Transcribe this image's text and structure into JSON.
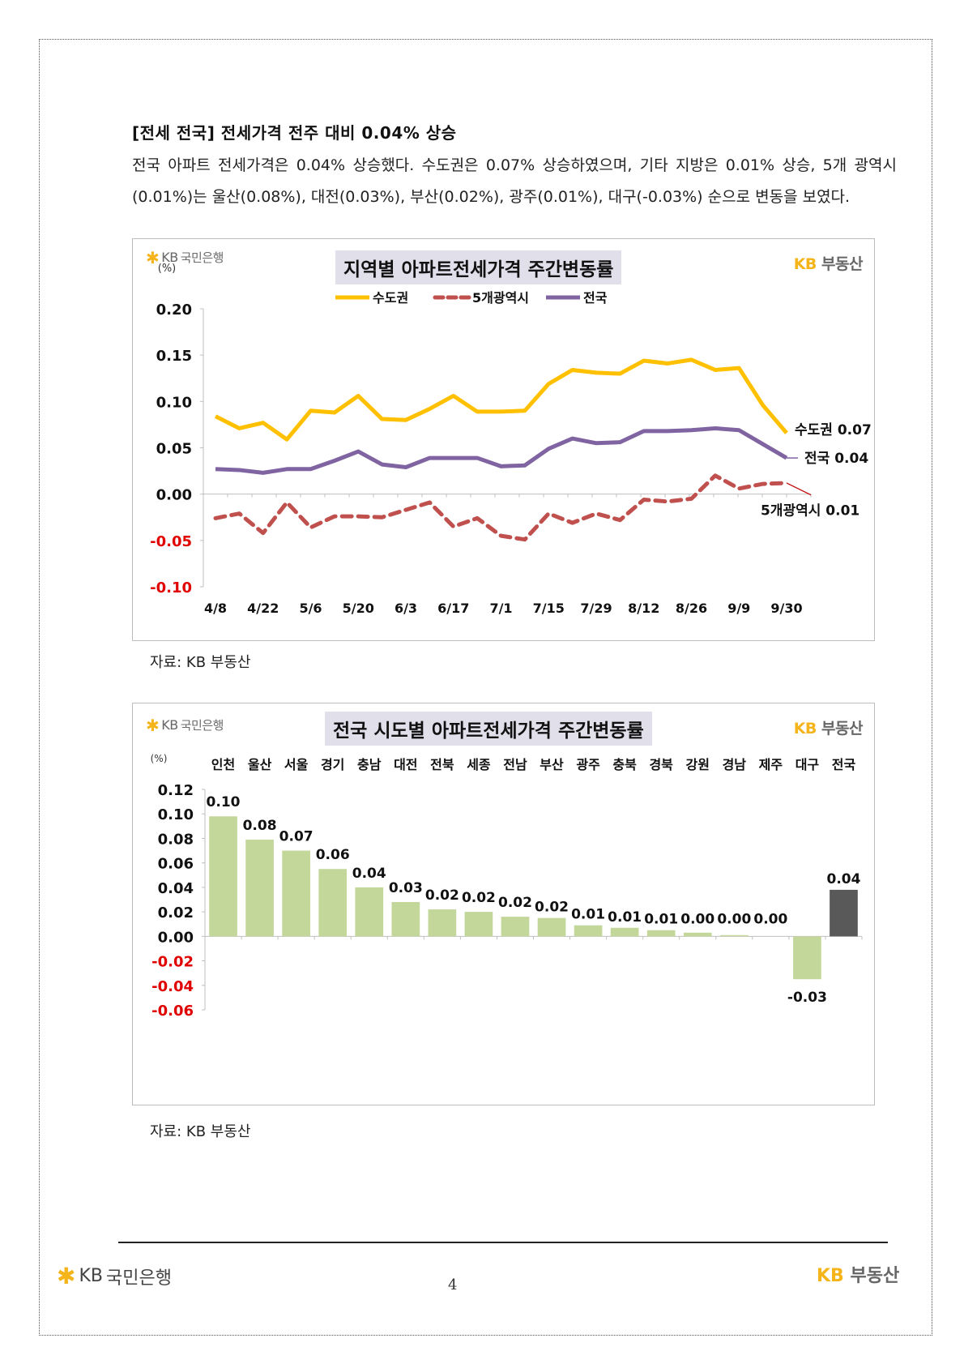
{
  "heading": "[전세 전국] 전세가격 전주 대비 0.04% 상승",
  "paragraph": "전국 아파트 전세가격은 0.04% 상승했다. 수도권은 0.07% 상승하였으며, 기타 지방은 0.01% 상승, 5개 광역시(0.01%)는 울산(0.08%), 대전(0.03%), 부산(0.02%), 광주(0.01%), 대구(-0.03%) 순으로 변동을 보였다.",
  "logos": {
    "bank_star": "✱",
    "bank_kb": "KB",
    "bank_name": "국민은행",
    "land_kb": "KB",
    "land_name": "부동산"
  },
  "colors": {
    "sudogwon": "#FFC000",
    "metro5": "#C0504D",
    "national": "#8064A2",
    "bar": "#C4D79B",
    "bar_highlight": "#595959",
    "negative_tick": "#E00000",
    "title_bg": "#E1DFEA",
    "kb_yellow": "#F5B41A"
  },
  "caption1": "자료: KB 부동산",
  "caption2": "자료: KB 부동산",
  "footer": {
    "page_number": "4"
  },
  "chart_data": [
    {
      "type": "line",
      "title": "지역별 아파트전세가격 주간변동률",
      "ylabel": "(%)",
      "xlabel": "",
      "ylim": [
        -0.1,
        0.2
      ],
      "yticks": [
        0.2,
        0.15,
        0.1,
        0.05,
        0.0,
        -0.05,
        -0.1
      ],
      "ytick_labels": [
        "0.20",
        "0.15",
        "0.10",
        "0.05",
        "0.00",
        "-0.05",
        "-0.10"
      ],
      "x_tick_labels": [
        "4/8",
        "4/22",
        "5/6",
        "5/20",
        "6/3",
        "6/17",
        "7/1",
        "7/15",
        "7/29",
        "8/12",
        "8/26",
        "9/9",
        "9/30"
      ],
      "x_tick_positions": [
        0,
        2,
        4,
        6,
        8,
        10,
        12,
        14,
        16,
        18,
        20,
        22,
        24
      ],
      "grid": false,
      "legend": "top-center",
      "series": [
        {
          "name": "수도권",
          "style": "solid",
          "values": [
            0.084,
            0.071,
            0.077,
            0.059,
            0.09,
            0.088,
            0.106,
            0.081,
            0.08,
            0.092,
            0.106,
            0.089,
            0.089,
            0.09,
            0.119,
            0.134,
            0.131,
            0.13,
            0.144,
            0.141,
            0.145,
            0.134,
            0.136,
            0.096,
            0.066
          ],
          "end_label": "수도권 0.07"
        },
        {
          "name": "5개광역시",
          "style": "dashed",
          "values": [
            -0.026,
            -0.021,
            -0.042,
            -0.009,
            -0.036,
            -0.024,
            -0.024,
            -0.025,
            -0.017,
            -0.009,
            -0.035,
            -0.026,
            -0.045,
            -0.049,
            -0.021,
            -0.031,
            -0.021,
            -0.028,
            -0.006,
            -0.008,
            -0.005,
            0.02,
            0.006,
            0.011,
            0.012
          ],
          "end_label": "5개광역시 0.01"
        },
        {
          "name": "전국",
          "style": "solid",
          "values": [
            0.027,
            0.026,
            0.023,
            0.027,
            0.027,
            0.036,
            0.046,
            0.032,
            0.029,
            0.039,
            0.039,
            0.039,
            0.03,
            0.031,
            0.049,
            0.06,
            0.055,
            0.056,
            0.068,
            0.068,
            0.069,
            0.071,
            0.069,
            0.054,
            0.039
          ],
          "end_label": "전국 0.04"
        }
      ]
    },
    {
      "type": "bar",
      "title": "전국 시도별 아파트전세가격 주간변동률",
      "ylabel": "(%)",
      "xlabel": "",
      "ylim": [
        -0.06,
        0.12
      ],
      "yticks": [
        0.12,
        0.1,
        0.08,
        0.06,
        0.04,
        0.02,
        0.0,
        -0.02,
        -0.04,
        -0.06
      ],
      "ytick_labels": [
        "0.12",
        "0.10",
        "0.08",
        "0.06",
        "0.04",
        "0.02",
        "0.00",
        "-0.02",
        "-0.04",
        "-0.06"
      ],
      "grid": false,
      "categories": [
        "인천",
        "울산",
        "서울",
        "경기",
        "충남",
        "대전",
        "전북",
        "세종",
        "전남",
        "부산",
        "광주",
        "충북",
        "경북",
        "강원",
        "경남",
        "제주",
        "대구",
        "전국"
      ],
      "values": [
        0.098,
        0.079,
        0.07,
        0.055,
        0.04,
        0.028,
        0.022,
        0.02,
        0.016,
        0.015,
        0.009,
        0.007,
        0.005,
        0.003,
        0.001,
        0.0,
        -0.035,
        0.038
      ],
      "data_labels": [
        "0.10",
        "0.08",
        "0.07",
        "0.06",
        "0.04",
        "0.03",
        "0.02",
        "0.02",
        "0.02",
        "0.02",
        "0.01",
        "0.01",
        "0.01",
        "0.00",
        "0.00",
        "0.00",
        "-0.03",
        "0.04"
      ],
      "highlight_category": "전국"
    }
  ]
}
